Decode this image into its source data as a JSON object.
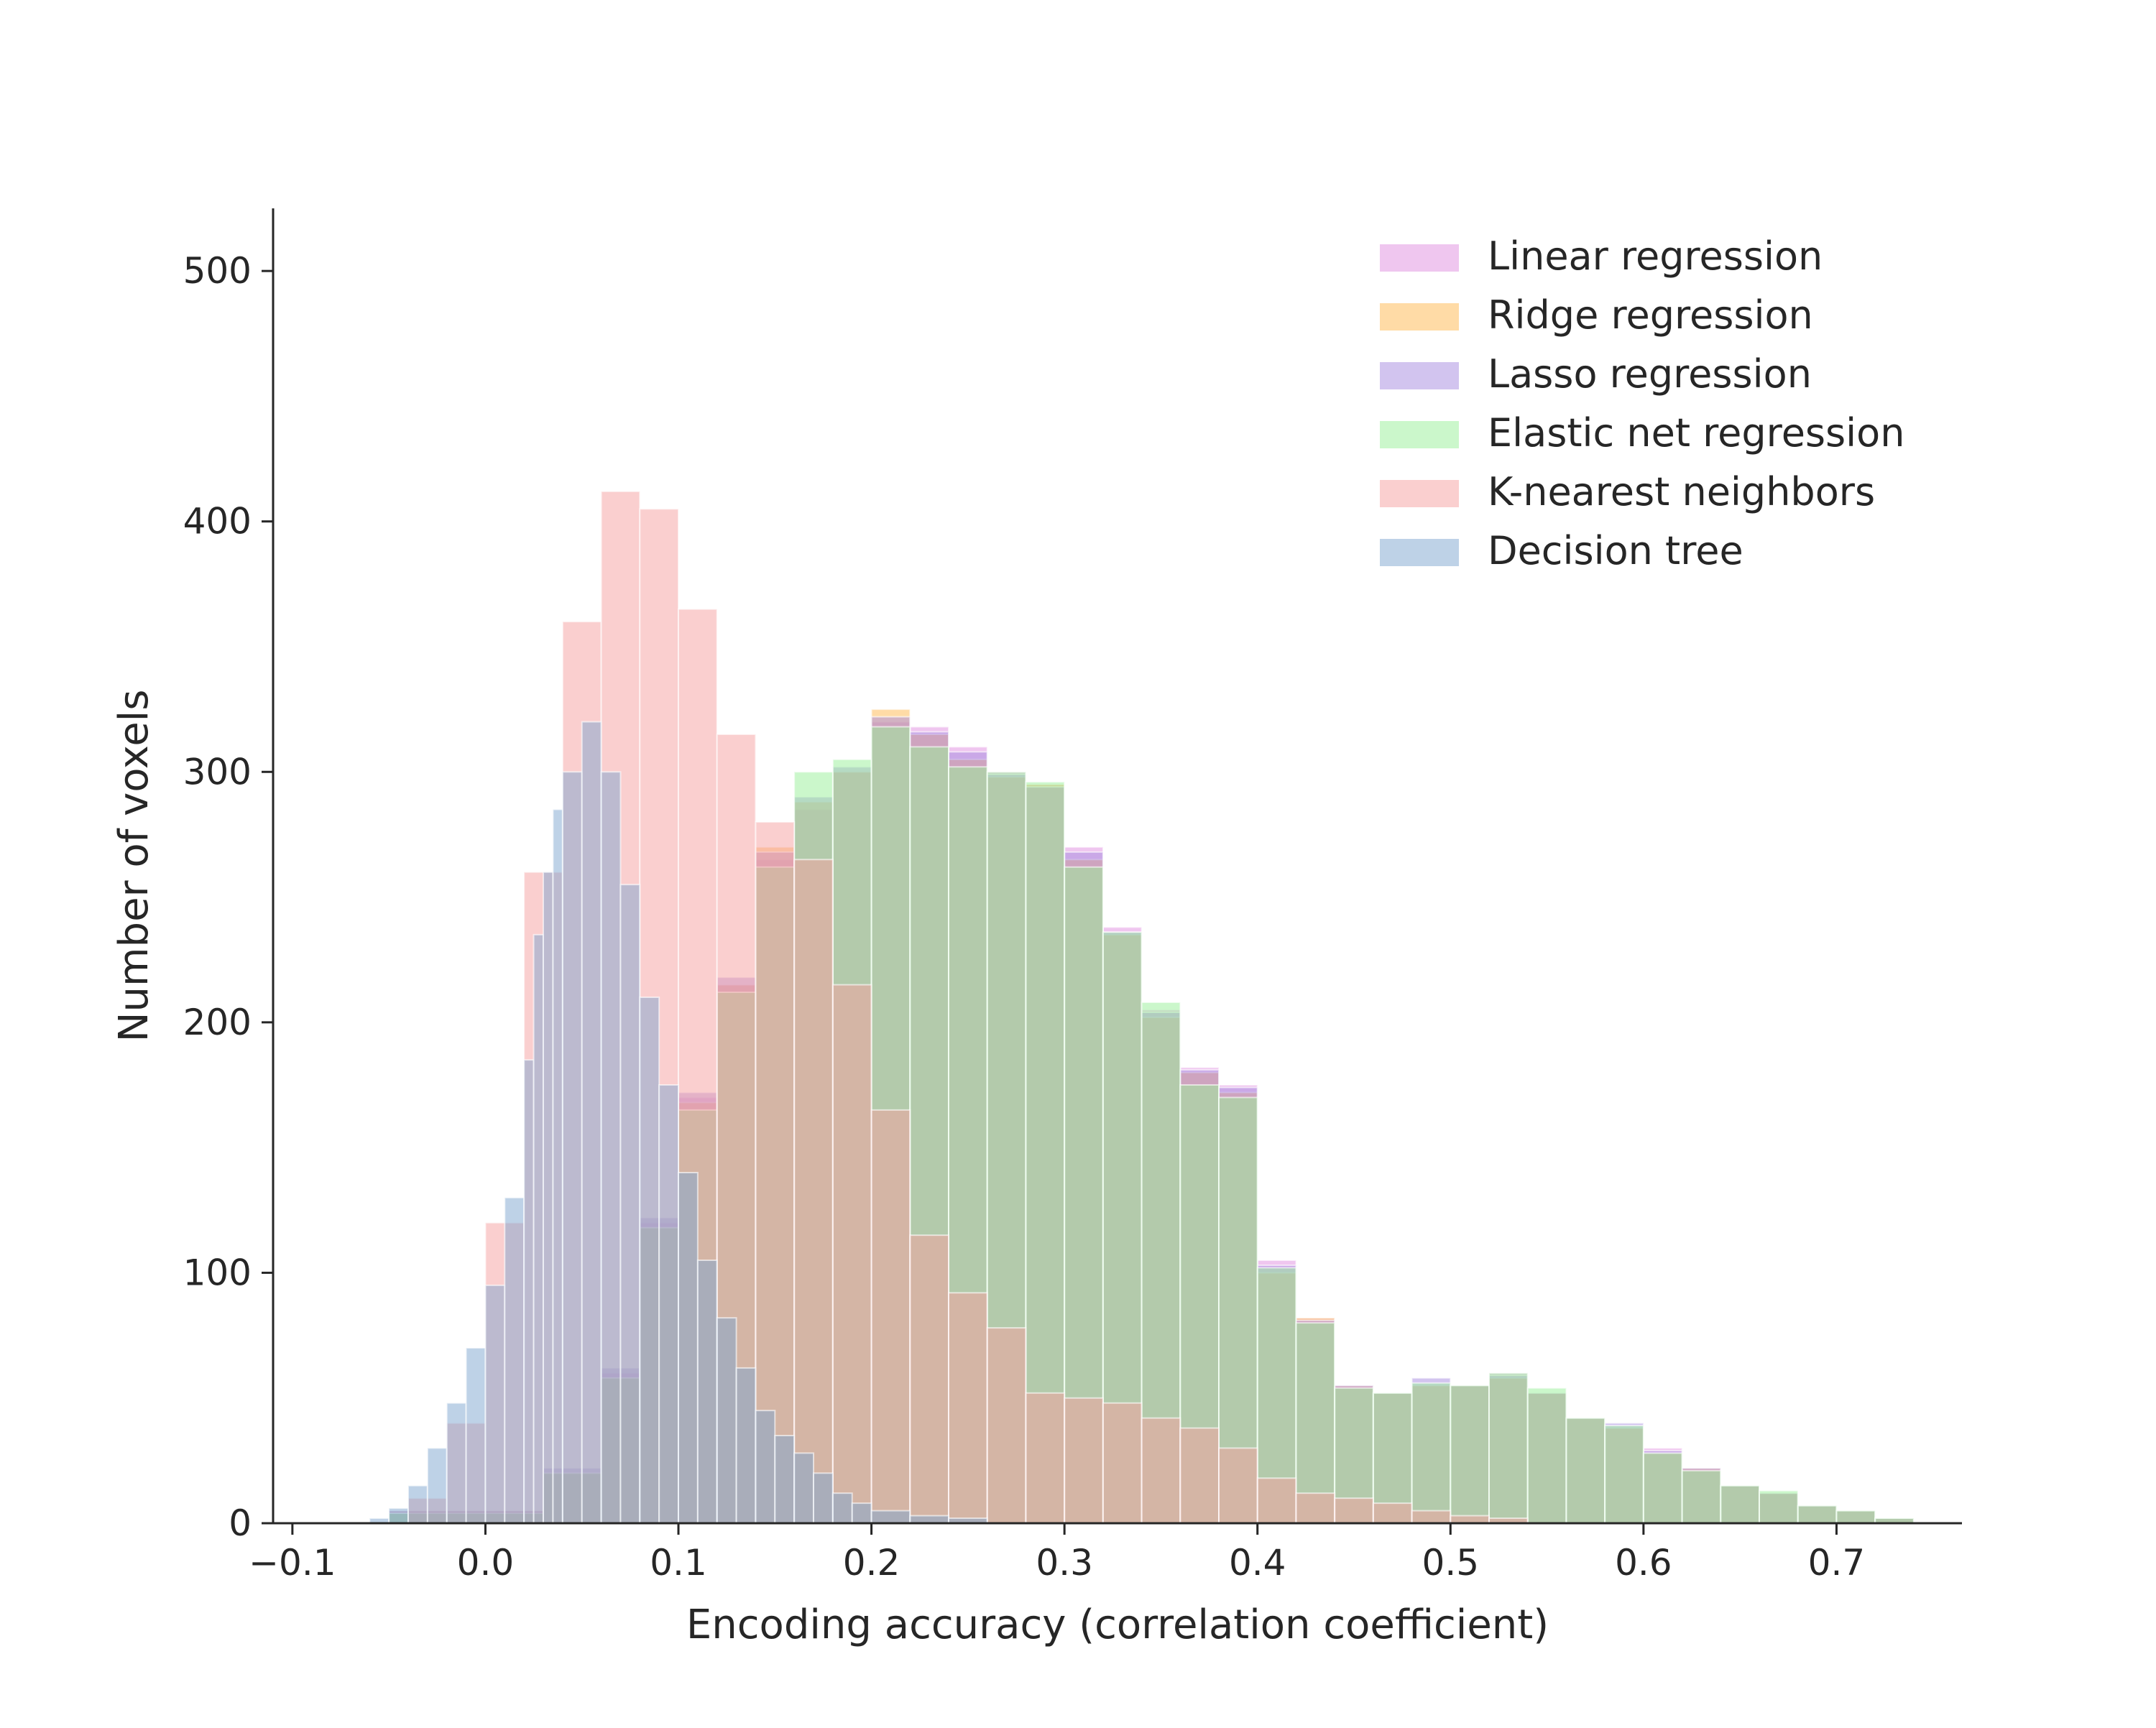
{
  "chart_data": {
    "type": "bar",
    "subtype": "overlaid-histogram",
    "title": "",
    "xlabel": "Encoding accuracy (correlation coefficient)",
    "ylabel": "Number of voxels",
    "xlim": [
      -0.11,
      0.765
    ],
    "ylim": [
      0,
      525
    ],
    "xticks": [
      -0.1,
      0.0,
      0.1,
      0.2,
      0.3,
      0.4,
      0.5,
      0.6,
      0.7
    ],
    "xtick_labels": [
      "−0.1",
      "0.0",
      "0.1",
      "0.2",
      "0.3",
      "0.4",
      "0.5",
      "0.6",
      "0.7"
    ],
    "yticks": [
      0,
      100,
      200,
      300,
      400,
      500
    ],
    "ytick_labels": [
      "0",
      "100",
      "200",
      "300",
      "400",
      "500"
    ],
    "grid": false,
    "legend_position": "top-right",
    "series": [
      {
        "name": "Linear regression",
        "color": "#e08ee0",
        "bins": [
          [
            -0.05,
            5
          ],
          [
            0.03,
            20
          ],
          [
            0.06,
            60
          ],
          [
            0.08,
            120
          ],
          [
            0.1,
            170
          ],
          [
            0.12,
            215
          ],
          [
            0.14,
            265
          ],
          [
            0.16,
            285
          ],
          [
            0.18,
            300
          ],
          [
            0.2,
            320
          ],
          [
            0.22,
            318
          ],
          [
            0.24,
            310
          ],
          [
            0.26,
            300
          ],
          [
            0.28,
            295
          ],
          [
            0.3,
            270
          ],
          [
            0.32,
            238
          ],
          [
            0.34,
            205
          ],
          [
            0.36,
            182
          ],
          [
            0.38,
            175
          ],
          [
            0.4,
            105
          ],
          [
            0.42,
            82
          ],
          [
            0.44,
            55
          ],
          [
            0.46,
            52
          ],
          [
            0.48,
            55
          ],
          [
            0.5,
            55
          ],
          [
            0.52,
            60
          ],
          [
            0.54,
            52
          ],
          [
            0.56,
            42
          ],
          [
            0.58,
            38
          ],
          [
            0.6,
            30
          ],
          [
            0.62,
            22
          ],
          [
            0.64,
            15
          ],
          [
            0.66,
            12
          ],
          [
            0.68,
            7
          ],
          [
            0.7,
            5
          ],
          [
            0.72,
            2
          ]
        ]
      },
      {
        "name": "Ridge regression",
        "color": "#ffb74d",
        "bins": [
          [
            -0.05,
            5
          ],
          [
            0.03,
            20
          ],
          [
            0.06,
            58
          ],
          [
            0.08,
            118
          ],
          [
            0.1,
            168
          ],
          [
            0.12,
            215
          ],
          [
            0.14,
            270
          ],
          [
            0.16,
            288
          ],
          [
            0.18,
            300
          ],
          [
            0.2,
            325
          ],
          [
            0.22,
            315
          ],
          [
            0.24,
            305
          ],
          [
            0.26,
            298
          ],
          [
            0.28,
            295
          ],
          [
            0.3,
            265
          ],
          [
            0.32,
            235
          ],
          [
            0.34,
            202
          ],
          [
            0.36,
            180
          ],
          [
            0.38,
            172
          ],
          [
            0.4,
            100
          ],
          [
            0.42,
            82
          ],
          [
            0.44,
            55
          ],
          [
            0.46,
            52
          ],
          [
            0.48,
            55
          ],
          [
            0.5,
            55
          ],
          [
            0.52,
            58
          ],
          [
            0.54,
            52
          ],
          [
            0.56,
            42
          ],
          [
            0.58,
            38
          ],
          [
            0.6,
            28
          ],
          [
            0.62,
            22
          ],
          [
            0.64,
            15
          ],
          [
            0.66,
            12
          ],
          [
            0.68,
            7
          ],
          [
            0.7,
            5
          ],
          [
            0.72,
            2
          ]
        ]
      },
      {
        "name": "Lasso regression",
        "color": "#a58ae0",
        "bins": [
          [
            -0.05,
            5
          ],
          [
            0.03,
            22
          ],
          [
            0.06,
            62
          ],
          [
            0.08,
            122
          ],
          [
            0.1,
            172
          ],
          [
            0.12,
            218
          ],
          [
            0.14,
            268
          ],
          [
            0.16,
            290
          ],
          [
            0.18,
            302
          ],
          [
            0.2,
            322
          ],
          [
            0.22,
            316
          ],
          [
            0.24,
            308
          ],
          [
            0.26,
            299
          ],
          [
            0.28,
            294
          ],
          [
            0.3,
            268
          ],
          [
            0.32,
            236
          ],
          [
            0.34,
            204
          ],
          [
            0.36,
            181
          ],
          [
            0.38,
            174
          ],
          [
            0.4,
            103
          ],
          [
            0.42,
            81
          ],
          [
            0.44,
            55
          ],
          [
            0.46,
            52
          ],
          [
            0.48,
            58
          ],
          [
            0.5,
            55
          ],
          [
            0.52,
            59
          ],
          [
            0.54,
            52
          ],
          [
            0.56,
            42
          ],
          [
            0.58,
            40
          ],
          [
            0.6,
            29
          ],
          [
            0.62,
            22
          ],
          [
            0.64,
            15
          ],
          [
            0.66,
            12
          ],
          [
            0.68,
            7
          ],
          [
            0.7,
            5
          ],
          [
            0.72,
            2
          ]
        ]
      },
      {
        "name": "Elastic net regression",
        "color": "#98f098",
        "bins": [
          [
            -0.05,
            4
          ],
          [
            0.03,
            20
          ],
          [
            0.06,
            58
          ],
          [
            0.08,
            118
          ],
          [
            0.1,
            165
          ],
          [
            0.12,
            212
          ],
          [
            0.14,
            262
          ],
          [
            0.16,
            300
          ],
          [
            0.18,
            305
          ],
          [
            0.2,
            318
          ],
          [
            0.22,
            310
          ],
          [
            0.24,
            302
          ],
          [
            0.26,
            300
          ],
          [
            0.28,
            296
          ],
          [
            0.3,
            262
          ],
          [
            0.32,
            236
          ],
          [
            0.34,
            208
          ],
          [
            0.36,
            175
          ],
          [
            0.38,
            170
          ],
          [
            0.4,
            102
          ],
          [
            0.42,
            80
          ],
          [
            0.44,
            54
          ],
          [
            0.46,
            52
          ],
          [
            0.48,
            56
          ],
          [
            0.5,
            55
          ],
          [
            0.52,
            60
          ],
          [
            0.54,
            54
          ],
          [
            0.56,
            42
          ],
          [
            0.58,
            39
          ],
          [
            0.6,
            28
          ],
          [
            0.62,
            21
          ],
          [
            0.64,
            15
          ],
          [
            0.66,
            13
          ],
          [
            0.68,
            7
          ],
          [
            0.7,
            5
          ],
          [
            0.72,
            2
          ]
        ]
      },
      {
        "name": "K-nearest neighbors",
        "color": "#f5a0a0",
        "bins": [
          [
            -0.04,
            10
          ],
          [
            -0.02,
            40
          ],
          [
            0.0,
            120
          ],
          [
            0.02,
            260
          ],
          [
            0.04,
            360
          ],
          [
            0.06,
            412
          ],
          [
            0.08,
            405
          ],
          [
            0.1,
            365
          ],
          [
            0.12,
            315
          ],
          [
            0.14,
            280
          ],
          [
            0.16,
            265
          ],
          [
            0.18,
            215
          ],
          [
            0.2,
            165
          ],
          [
            0.22,
            115
          ],
          [
            0.24,
            92
          ],
          [
            0.26,
            78
          ],
          [
            0.28,
            52
          ],
          [
            0.3,
            50
          ],
          [
            0.32,
            48
          ],
          [
            0.34,
            42
          ],
          [
            0.36,
            38
          ],
          [
            0.38,
            30
          ],
          [
            0.4,
            18
          ],
          [
            0.42,
            12
          ],
          [
            0.44,
            10
          ],
          [
            0.46,
            8
          ],
          [
            0.48,
            5
          ],
          [
            0.5,
            3
          ],
          [
            0.52,
            2
          ]
        ]
      },
      {
        "name": "Decision tree",
        "color": "#7ea6cf",
        "bins": [
          [
            -0.06,
            2
          ],
          [
            -0.05,
            6
          ],
          [
            -0.04,
            15
          ],
          [
            -0.03,
            30
          ],
          [
            -0.02,
            48
          ],
          [
            -0.01,
            70
          ],
          [
            0.0,
            95
          ],
          [
            0.01,
            130
          ],
          [
            0.02,
            185
          ],
          [
            0.025,
            235
          ],
          [
            0.03,
            260
          ],
          [
            0.035,
            285
          ],
          [
            0.04,
            300
          ],
          [
            0.05,
            320
          ],
          [
            0.06,
            300
          ],
          [
            0.07,
            255
          ],
          [
            0.08,
            210
          ],
          [
            0.09,
            175
          ],
          [
            0.1,
            140
          ],
          [
            0.11,
            105
          ],
          [
            0.12,
            82
          ],
          [
            0.13,
            62
          ],
          [
            0.14,
            45
          ],
          [
            0.15,
            35
          ],
          [
            0.16,
            28
          ],
          [
            0.17,
            20
          ],
          [
            0.18,
            12
          ],
          [
            0.19,
            8
          ],
          [
            0.2,
            5
          ],
          [
            0.22,
            3
          ],
          [
            0.24,
            2
          ]
        ]
      }
    ]
  }
}
